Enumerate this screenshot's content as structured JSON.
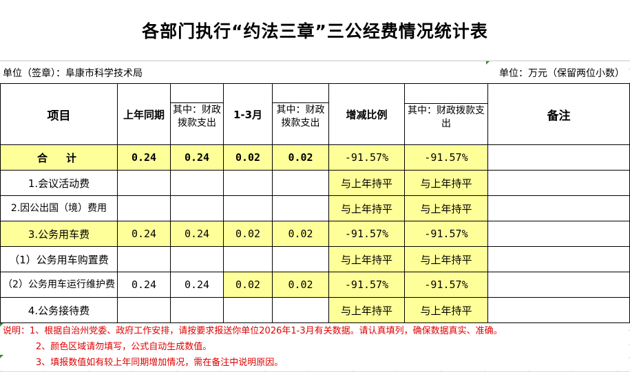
{
  "title": "各部门执行“约法三章”三公经费情况统计表",
  "unit_left": "单位（签章）：阜康市科学技术局",
  "unit_right": "单位：万元（保留两位小数）",
  "headers": {
    "item": "项目",
    "last_year": "上年同期",
    "last_year_fiscal": "其中：财政拨款支出",
    "months": "1-3月",
    "months_fiscal": "其中：财政拨款支出",
    "change": "增减比例",
    "change_fiscal": "其中：财政拨款支出",
    "remark": "备注"
  },
  "rows": [
    {
      "label": "合　计",
      "last_year": "0.24",
      "last_year_fiscal": "0.24",
      "months": "0.02",
      "months_fiscal": "0.02",
      "change": "-91.57%",
      "change_fiscal": "-91.57%",
      "remark": ""
    },
    {
      "label": "1.会议活动费",
      "last_year": "",
      "last_year_fiscal": "",
      "months": "",
      "months_fiscal": "",
      "change": "与上年持平",
      "change_fiscal": "与上年持平",
      "remark": ""
    },
    {
      "label": "2.因公出国（境）费用",
      "last_year": "",
      "last_year_fiscal": "",
      "months": "",
      "months_fiscal": "",
      "change": "与上年持平",
      "change_fiscal": "与上年持平",
      "remark": ""
    },
    {
      "label": "3.公务用车费",
      "last_year": "0.24",
      "last_year_fiscal": "0.24",
      "months": "0.02",
      "months_fiscal": "0.02",
      "change": "-91.57%",
      "change_fiscal": "-91.57%",
      "remark": ""
    },
    {
      "label": "（1）公务用车购置费",
      "last_year": "",
      "last_year_fiscal": "",
      "months": "",
      "months_fiscal": "",
      "change": "与上年持平",
      "change_fiscal": "与上年持平",
      "remark": ""
    },
    {
      "label": "（2）公务用车运行维护费",
      "last_year": "0.24",
      "last_year_fiscal": "0.24",
      "months": "0.02",
      "months_fiscal": "0.02",
      "change": "-91.57%",
      "change_fiscal": "-91.57%",
      "remark": ""
    },
    {
      "label": "4.公务接待费",
      "last_year": "",
      "last_year_fiscal": "",
      "months": "",
      "months_fiscal": "",
      "change": "与上年持平",
      "change_fiscal": "与上年持平",
      "remark": ""
    }
  ],
  "notes": [
    "说明：1、根据自治州党委、政府工作安排，请按要求报送你单位2026年1-3月有关数据。请认真填列，确保数据真实、准确。",
    "2、颜色区域请勿填写，公式自动生成数值。",
    "3、填报数值如有较上年同期增加情况，需在备注中说明原因。"
  ],
  "colors": {
    "fill_yellow": "#ffff99",
    "note_red": "#e00000",
    "marker_green": "#2f8f2f"
  }
}
